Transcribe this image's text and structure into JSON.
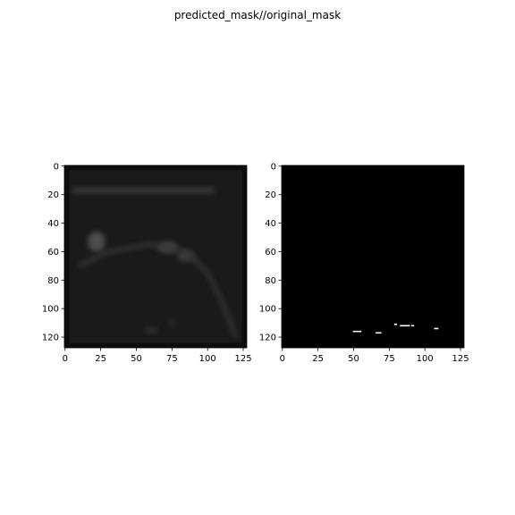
{
  "figure": {
    "suptitle": "predicted_mask//original_mask"
  },
  "chart_data": [
    {
      "type": "heatmap",
      "title": "",
      "xlabel": "",
      "ylabel": "",
      "colormap": "gray",
      "image_size": [
        128,
        128
      ],
      "xlim": [
        -0.5,
        127.5
      ],
      "ylim": [
        127.5,
        -0.5
      ],
      "xticks": [
        0,
        25,
        50,
        75,
        100,
        125
      ],
      "yticks": [
        0,
        20,
        40,
        60,
        80,
        100,
        120
      ],
      "background_value": 0.1,
      "features": [
        {
          "kind": "border",
          "value": 0.05
        },
        {
          "kind": "band",
          "x": [
            5,
            105
          ],
          "y": [
            15,
            19
          ],
          "value": 0.22
        },
        {
          "kind": "blob",
          "cx": 22,
          "cy": 53,
          "rx": 6,
          "ry": 7,
          "value": 0.3
        },
        {
          "kind": "blob",
          "cx": 72,
          "cy": 57,
          "rx": 7,
          "ry": 4,
          "value": 0.27
        },
        {
          "kind": "blob",
          "cx": 85,
          "cy": 63,
          "rx": 6,
          "ry": 4,
          "value": 0.24
        },
        {
          "kind": "curve",
          "points": [
            [
              10,
              70
            ],
            [
              30,
              60
            ],
            [
              60,
              55
            ],
            [
              85,
              60
            ],
            [
              100,
              75
            ],
            [
              110,
              95
            ],
            [
              120,
              120
            ]
          ],
          "value": 0.2
        },
        {
          "kind": "blob",
          "cx": 60,
          "cy": 115,
          "rx": 5,
          "ry": 2,
          "value": 0.18
        },
        {
          "kind": "blob",
          "cx": 75,
          "cy": 110,
          "rx": 3,
          "ry": 2,
          "value": 0.17
        }
      ]
    },
    {
      "type": "heatmap",
      "title": "",
      "xlabel": "",
      "ylabel": "",
      "colormap": "gray",
      "image_size": [
        128,
        128
      ],
      "xlim": [
        -0.5,
        127.5
      ],
      "ylim": [
        127.5,
        -0.5
      ],
      "xticks": [
        0,
        25,
        50,
        75,
        100,
        125
      ],
      "yticks": [
        0,
        20,
        40,
        60,
        80,
        100,
        120
      ],
      "background_value": 0,
      "segments": [
        {
          "x": [
            50,
            55
          ],
          "y": 116,
          "value": 1
        },
        {
          "x": [
            66,
            69
          ],
          "y": 117,
          "value": 1
        },
        {
          "x": [
            79,
            80
          ],
          "y": 111,
          "value": 1
        },
        {
          "x": [
            83,
            89
          ],
          "y": 112,
          "value": 1
        },
        {
          "x": [
            91,
            92
          ],
          "y": 112,
          "value": 1
        },
        {
          "x": [
            107,
            109
          ],
          "y": 114,
          "value": 1
        }
      ]
    }
  ]
}
